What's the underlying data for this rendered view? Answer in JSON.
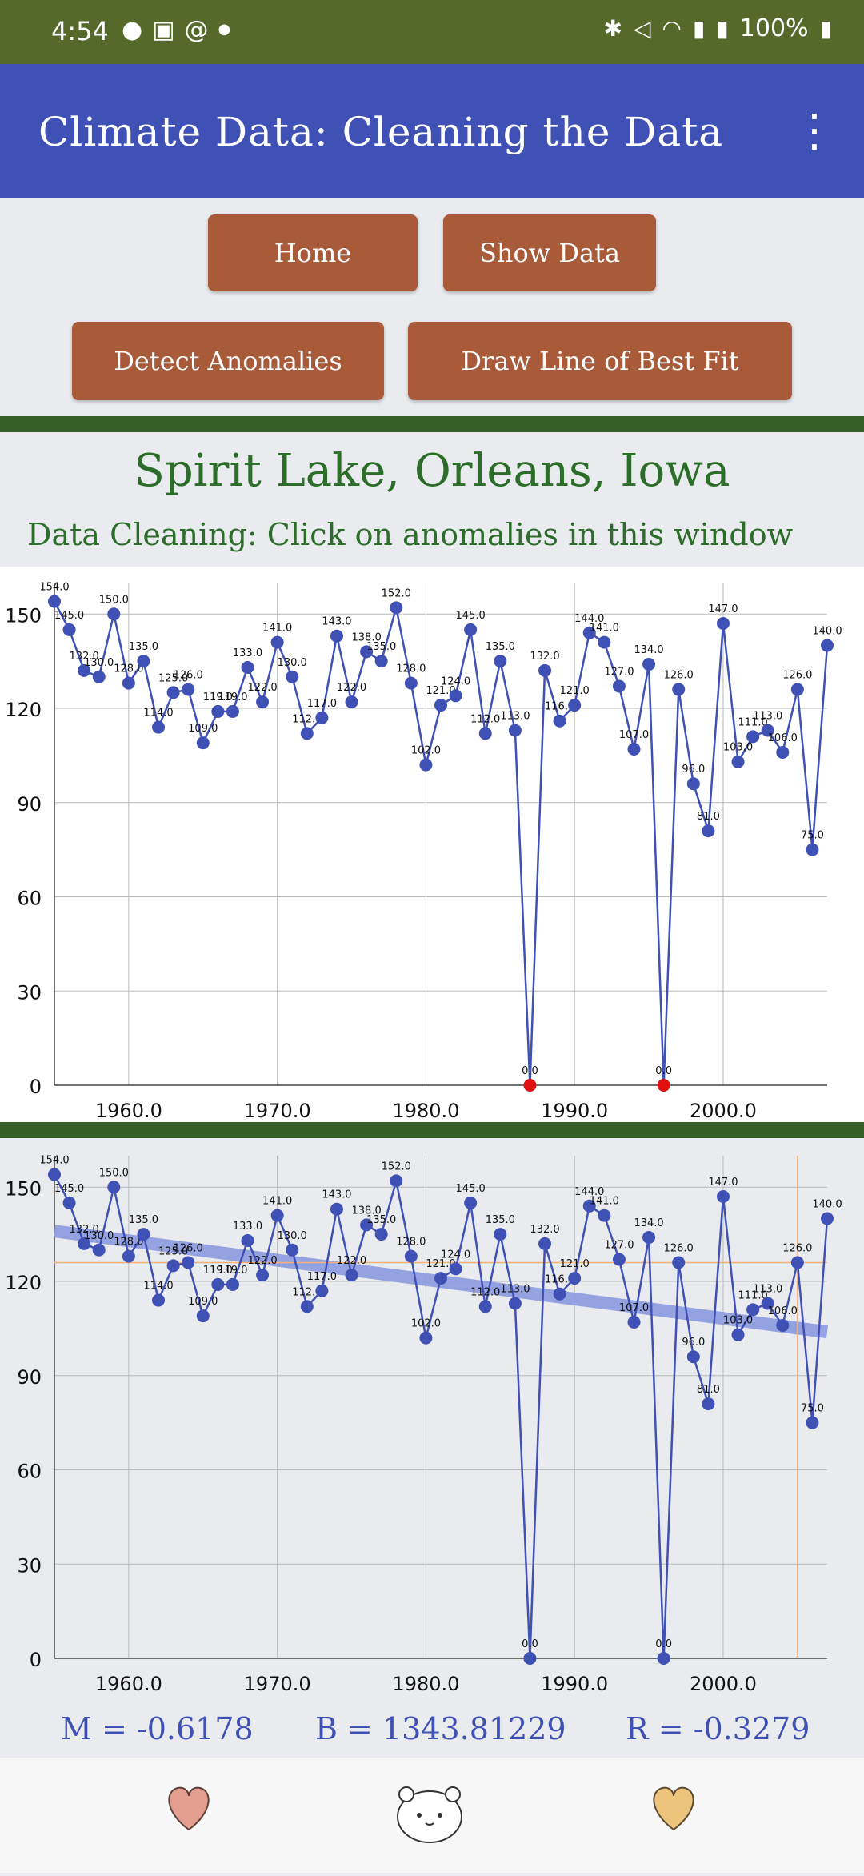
{
  "status_bar": {
    "time": "4:54",
    "battery": "100%",
    "left_icons": [
      "line-icon",
      "image-icon",
      "threads-icon",
      "dot-icon"
    ],
    "right_icons": [
      "bluetooth-icon",
      "mute-icon",
      "wifi-icon",
      "signal-icon",
      "signal-icon",
      "battery-icon"
    ]
  },
  "app_bar": {
    "title": "Climate Data: Cleaning the Data",
    "menu_icon": "more-vert-icon"
  },
  "buttons": {
    "home": "Home",
    "show_data": "Show Data",
    "detect_anomalies": "Detect Anomalies",
    "draw_line": "Draw Line of Best Fit"
  },
  "location": "Spirit Lake, Orleans, Iowa",
  "instruction": "Data Cleaning: Click on anomalies in this window",
  "colors": {
    "accent": "#3f51b5",
    "button": "#a85a39",
    "divider": "#355f27",
    "anomaly": "#e01010",
    "fit_line": "#8d9be0"
  },
  "chart_data": [
    {
      "type": "line",
      "x": [
        1955,
        1956,
        1957,
        1958,
        1959,
        1960,
        1961,
        1962,
        1963,
        1964,
        1965,
        1966,
        1967,
        1968,
        1969,
        1970,
        1971,
        1972,
        1973,
        1974,
        1975,
        1976,
        1977,
        1978,
        1979,
        1980,
        1981,
        1982,
        1983,
        1984,
        1985,
        1986,
        1987,
        1988,
        1989,
        1990,
        1991,
        1992,
        1993,
        1994,
        1995,
        1996,
        1997,
        1998,
        1999,
        2000,
        2001,
        2002,
        2003,
        2004,
        2005,
        2006,
        2007
      ],
      "series": [
        {
          "values": [
            154,
            145,
            132,
            130,
            150,
            128,
            135,
            114,
            125,
            126,
            109,
            119,
            119,
            133,
            122,
            141,
            130,
            112,
            117,
            143,
            122,
            138,
            135,
            152,
            128,
            102,
            121,
            124,
            145,
            112,
            135,
            113,
            0,
            132,
            116,
            121,
            144,
            141,
            127,
            107,
            134,
            0,
            126,
            96,
            81,
            147,
            103,
            111,
            113,
            106,
            126,
            75,
            140
          ]
        }
      ],
      "labels": [
        "154.0",
        "145.0",
        "132.0",
        "130.0",
        "150.0",
        "128.0",
        "135.0",
        "114.0",
        "125.0",
        "126.0",
        "109.0",
        "119.0",
        "119.0",
        "133.0",
        "122.0",
        "141.0",
        "130.0",
        "112.0",
        "117.0",
        "143.0",
        "122.0",
        "138.0",
        "135.0",
        "152.0",
        "128.0",
        "102.0",
        "121.0",
        "124.0",
        "145.0",
        "112.0",
        "135.0",
        "113.0",
        "0.0",
        "132.0",
        "116.0",
        "121.0",
        "144.0",
        "141.0",
        "127.0",
        "107.0",
        "134.0",
        "0.0",
        "126.0",
        "96.0",
        "81.0",
        "147.0",
        "103.0",
        "111.0",
        "113.0",
        "106.0",
        "126.0",
        "75.0",
        "140.0"
      ],
      "anomalies_x": [
        1987,
        1996
      ],
      "xticks": [
        "1960.0",
        "1970.0",
        "1980.0",
        "1990.0",
        "2000.0"
      ],
      "yticks": [
        "0",
        "30",
        "60",
        "90",
        "120",
        "150"
      ],
      "xlim": [
        1955,
        2007
      ],
      "ylim": [
        0,
        160
      ],
      "grid": true
    },
    {
      "type": "line",
      "x": [
        1955,
        1956,
        1957,
        1958,
        1959,
        1960,
        1961,
        1962,
        1963,
        1964,
        1965,
        1966,
        1967,
        1968,
        1969,
        1970,
        1971,
        1972,
        1973,
        1974,
        1975,
        1976,
        1977,
        1978,
        1979,
        1980,
        1981,
        1982,
        1983,
        1984,
        1985,
        1986,
        1987,
        1988,
        1989,
        1990,
        1991,
        1992,
        1993,
        1994,
        1995,
        1996,
        1997,
        1998,
        1999,
        2000,
        2001,
        2002,
        2003,
        2004,
        2005,
        2006,
        2007
      ],
      "series": [
        {
          "values": [
            154,
            145,
            132,
            130,
            150,
            128,
            135,
            114,
            125,
            126,
            109,
            119,
            119,
            133,
            122,
            141,
            130,
            112,
            117,
            143,
            122,
            138,
            135,
            152,
            128,
            102,
            121,
            124,
            145,
            112,
            135,
            113,
            0,
            132,
            116,
            121,
            144,
            141,
            127,
            107,
            134,
            0,
            126,
            96,
            81,
            147,
            103,
            111,
            113,
            106,
            126,
            75,
            140
          ]
        }
      ],
      "labels": [
        "154.0",
        "145.0",
        "132.0",
        "130.0",
        "150.0",
        "128.0",
        "135.0",
        "114.0",
        "125.0",
        "126.0",
        "109.0",
        "119.0",
        "119.0",
        "133.0",
        "122.0",
        "141.0",
        "130.0",
        "112.0",
        "117.0",
        "143.0",
        "122.0",
        "138.0",
        "135.0",
        "152.0",
        "128.0",
        "102.0",
        "121.0",
        "124.0",
        "145.0",
        "112.0",
        "135.0",
        "113.0",
        "0.0",
        "132.0",
        "116.0",
        "121.0",
        "144.0",
        "141.0",
        "127.0",
        "107.0",
        "134.0",
        "0.0",
        "126.0",
        "96.0",
        "81.0",
        "147.0",
        "103.0",
        "111.0",
        "113.0",
        "106.0",
        "126.0",
        "75.0",
        "140.0"
      ],
      "fit_line": {
        "m": -0.6178,
        "b": 1343.81229,
        "x_range": [
          1955,
          2007
        ]
      },
      "crosshair": {
        "x": 2005,
        "y": 126
      },
      "xticks": [
        "1960.0",
        "1970.0",
        "1980.0",
        "1990.0",
        "2000.0"
      ],
      "yticks": [
        "0",
        "30",
        "60",
        "90",
        "120",
        "150"
      ],
      "xlim": [
        1955,
        2007
      ],
      "ylim": [
        0,
        160
      ],
      "grid": true
    }
  ],
  "stats": {
    "m": "M = -0.6178",
    "b": "B = 1343.81229",
    "r": "R = -0.3279"
  },
  "nav_bar": {
    "icons": [
      "heart-icon",
      "bear-icon",
      "heart-icon"
    ]
  }
}
